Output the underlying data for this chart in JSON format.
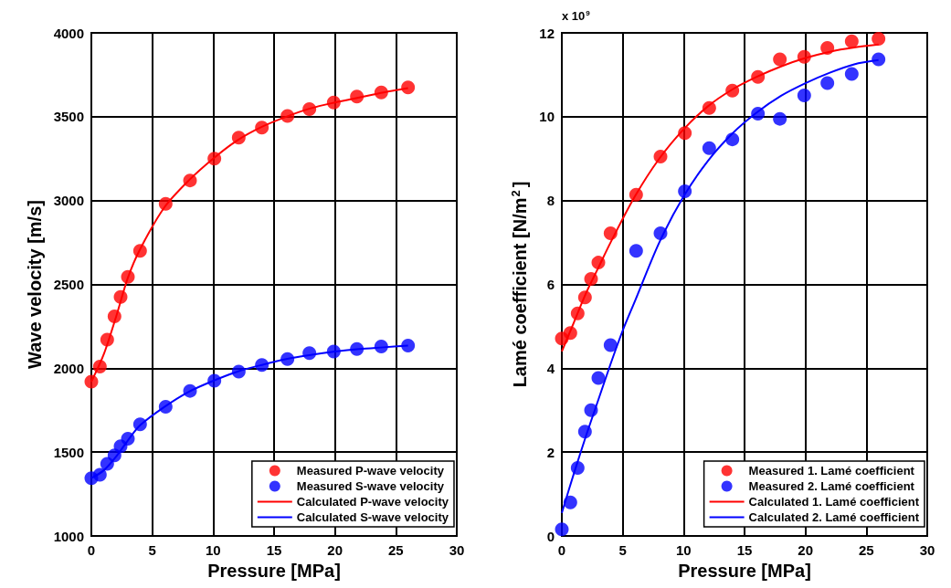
{
  "chart_data": [
    {
      "type": "line",
      "xlabel": "Pressure [MPa]",
      "ylabel": "Wave velocity [m/s]",
      "xlim": [
        0,
        30
      ],
      "xticks": [
        0,
        5,
        10,
        15,
        20,
        25,
        30
      ],
      "ylim": [
        1000,
        4000
      ],
      "yticks": [
        1000,
        1500,
        2000,
        2500,
        3000,
        3500,
        4000
      ],
      "grid": true,
      "legend": "bottom right",
      "series": [
        {
          "name": "Measured P-wave velocity",
          "color": "#ff0000",
          "type": "scatter",
          "marker": "circle",
          "x": [
            0,
            0.7,
            1.3,
            1.9,
            2.4,
            3,
            4,
            6.1,
            8.1,
            10.1,
            12.1,
            14,
            16.1,
            17.9,
            19.9,
            21.8,
            23.8,
            26
          ],
          "values": [
            1920,
            2010,
            2170,
            2310,
            2425,
            2545,
            2700,
            2980,
            3120,
            3250,
            3375,
            3435,
            3505,
            3545,
            3585,
            3620,
            3645,
            3675
          ]
        },
        {
          "name": "Measured S-wave velocity",
          "color": "#0000ff",
          "type": "scatter",
          "marker": "circle",
          "x": [
            0,
            0.7,
            1.3,
            1.9,
            2.4,
            3,
            4,
            6.1,
            8.1,
            10.1,
            12.1,
            14,
            16.1,
            17.9,
            19.9,
            21.8,
            23.8,
            26
          ],
          "values": [
            1345,
            1365,
            1430,
            1480,
            1535,
            1580,
            1665,
            1770,
            1865,
            1925,
            1980,
            2020,
            2055,
            2090,
            2100,
            2115,
            2130,
            2135
          ]
        },
        {
          "name": "Calculated P-wave velocity",
          "color": "#ff0000",
          "marker": "none",
          "x": [
            0,
            1,
            2,
            3,
            4,
            6,
            8,
            10,
            12,
            14,
            16,
            18,
            20,
            22,
            24,
            26
          ],
          "values": [
            1920,
            2080,
            2300,
            2540,
            2710,
            2960,
            3120,
            3250,
            3360,
            3440,
            3500,
            3550,
            3585,
            3615,
            3645,
            3670
          ]
        },
        {
          "name": "Calculated S-wave velocity",
          "color": "#0000ff",
          "marker": "none",
          "x": [
            0,
            1,
            2,
            3,
            4,
            6,
            8,
            10,
            12,
            14,
            16,
            18,
            20,
            22,
            24,
            26
          ],
          "values": [
            1345,
            1390,
            1470,
            1570,
            1660,
            1770,
            1860,
            1925,
            1980,
            2020,
            2055,
            2080,
            2100,
            2115,
            2125,
            2135
          ]
        }
      ]
    },
    {
      "type": "line",
      "xlabel": "Pressure [MPa]",
      "ylabel": "Lamé coefficient [N/m$^{2}$]",
      "annotations": [
        "x 10$^{9}$"
      ],
      "xlim": [
        0,
        30
      ],
      "xticks": [
        0,
        5,
        10,
        15,
        20,
        25,
        30
      ],
      "ylim": [
        0,
        12
      ],
      "yticks": [
        0,
        2,
        4,
        6,
        8,
        10,
        12
      ],
      "grid": true,
      "legend": "bottom right",
      "series": [
        {
          "name": "Measured 1. Lamé coefficient",
          "color": "#ff0000",
          "type": "scatter",
          "marker": "circle",
          "x": [
            0,
            0.7,
            1.3,
            1.9,
            2.4,
            3,
            4,
            6.1,
            8.1,
            10.1,
            12.1,
            14,
            16.1,
            17.9,
            19.9,
            21.8,
            23.8,
            26
          ],
          "values": [
            4.71,
            4.84,
            5.31,
            5.69,
            6.13,
            6.52,
            7.22,
            8.14,
            9.05,
            9.61,
            10.21,
            10.62,
            10.95,
            11.37,
            11.43,
            11.64,
            11.8,
            11.86
          ]
        },
        {
          "name": "Measured 2. Lamé coefficient",
          "color": "#0000ff",
          "type": "scatter",
          "marker": "circle",
          "x": [
            0,
            0.7,
            1.3,
            1.9,
            2.4,
            3,
            4,
            6.1,
            8.1,
            10.1,
            12.1,
            14,
            16.1,
            17.9,
            19.9,
            21.8,
            23.8,
            26
          ],
          "values": [
            0.16,
            0.8,
            1.62,
            2.49,
            3.0,
            3.77,
            4.55,
            6.8,
            7.22,
            8.22,
            9.25,
            9.46,
            10.07,
            9.95,
            10.51,
            10.8,
            11.02,
            11.37
          ]
        },
        {
          "name": "Calculated 1. Lamé coefficient",
          "color": "#ff0000",
          "marker": "none",
          "x": [
            0,
            1,
            2,
            3,
            4,
            6,
            8,
            10,
            12,
            14,
            16,
            18,
            20,
            22,
            24,
            26
          ],
          "values": [
            4.4,
            5.1,
            5.8,
            6.4,
            7.0,
            8.1,
            9.0,
            9.7,
            10.25,
            10.65,
            10.95,
            11.2,
            11.4,
            11.55,
            11.65,
            11.72
          ]
        },
        {
          "name": "Calculated 2. Lamé coefficient",
          "color": "#0000ff",
          "marker": "none",
          "x": [
            0,
            1,
            2,
            3,
            4,
            5,
            6,
            8,
            10,
            12,
            14,
            16,
            18,
            20,
            22,
            24,
            26
          ],
          "values": [
            0.55,
            1.5,
            2.4,
            3.25,
            4.1,
            4.9,
            5.6,
            7.0,
            8.1,
            8.95,
            9.6,
            10.1,
            10.5,
            10.8,
            11.05,
            11.25,
            11.35
          ]
        }
      ]
    }
  ]
}
